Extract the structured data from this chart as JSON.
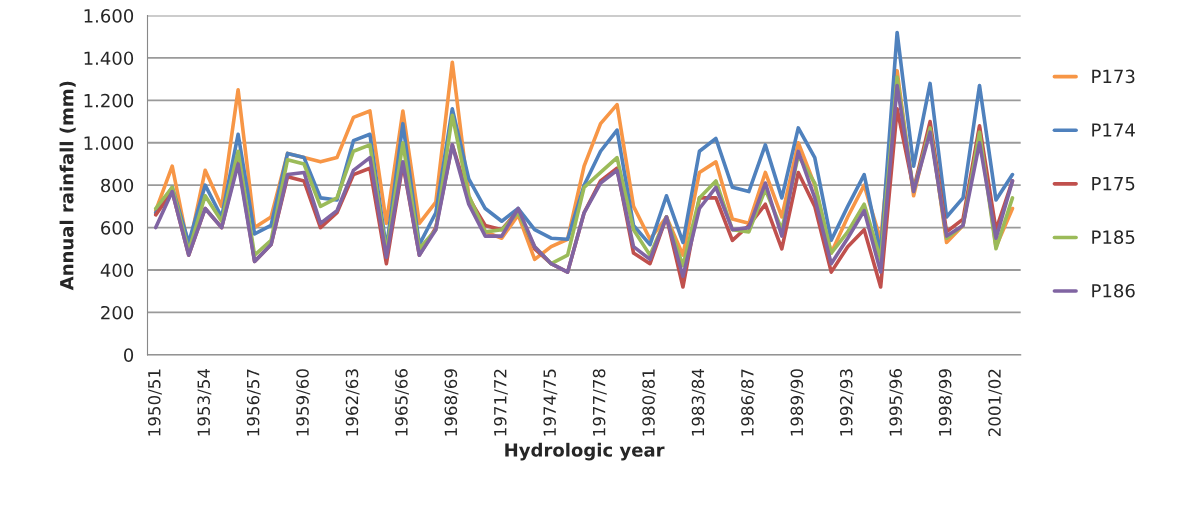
{
  "chart_data": {
    "type": "line",
    "xlabel": "Hydrologic year",
    "ylabel": "Annual rainfall (mm)",
    "categories": [
      "1950/51",
      null,
      null,
      "1953/54",
      null,
      null,
      "1956/57",
      null,
      null,
      "1959/60",
      null,
      null,
      "1962/63",
      null,
      null,
      "1965/66",
      null,
      null,
      "1968/69",
      null,
      null,
      "1971/72",
      null,
      null,
      "1974/75",
      null,
      null,
      "1977/78",
      null,
      null,
      "1980/81",
      null,
      null,
      "1983/84",
      null,
      null,
      "1986/87",
      null,
      null,
      "1989/90",
      null,
      null,
      "1992/93",
      null,
      null,
      "1995/96",
      null,
      null,
      "1998/99",
      null,
      null,
      "2001/02",
      null
    ],
    "series": [
      {
        "name": "P173",
        "color": "#f79646",
        "values": [
          680,
          890,
          500,
          870,
          700,
          1250,
          600,
          650,
          950,
          930,
          910,
          930,
          1120,
          1150,
          620,
          1150,
          620,
          720,
          1380,
          750,
          580,
          550,
          660,
          450,
          510,
          545,
          890,
          1090,
          1180,
          700,
          545,
          650,
          470,
          860,
          910,
          640,
          620,
          860,
          650,
          1000,
          800,
          480,
          650,
          800,
          540,
          1340,
          750,
          1080,
          530,
          610,
          1070,
          510,
          690
        ]
      },
      {
        "name": "P174",
        "color": "#4f81bd",
        "values": [
          670,
          790,
          530,
          800,
          650,
          1040,
          570,
          610,
          950,
          930,
          740,
          730,
          1010,
          1040,
          500,
          1090,
          520,
          670,
          1160,
          830,
          690,
          630,
          690,
          590,
          550,
          545,
          800,
          960,
          1060,
          610,
          520,
          750,
          530,
          960,
          1020,
          790,
          770,
          990,
          740,
          1070,
          930,
          540,
          700,
          850,
          480,
          1520,
          890,
          1280,
          650,
          740,
          1270,
          730,
          850
        ]
      },
      {
        "name": "P175",
        "color": "#c0504d",
        "values": [
          660,
          770,
          470,
          690,
          600,
          920,
          440,
          520,
          840,
          820,
          600,
          670,
          850,
          880,
          430,
          900,
          470,
          600,
          990,
          740,
          610,
          590,
          680,
          500,
          430,
          390,
          670,
          820,
          880,
          480,
          430,
          650,
          320,
          740,
          740,
          540,
          610,
          710,
          500,
          860,
          700,
          390,
          510,
          590,
          320,
          1160,
          780,
          1100,
          580,
          640,
          1080,
          590,
          820
        ]
      },
      {
        "name": "P185",
        "color": "#9bbb59",
        "values": [
          690,
          790,
          490,
          750,
          630,
          960,
          470,
          540,
          920,
          900,
          700,
          740,
          960,
          990,
          480,
          1000,
          500,
          590,
          1130,
          750,
          580,
          590,
          670,
          510,
          430,
          470,
          790,
          860,
          930,
          590,
          470,
          650,
          420,
          740,
          820,
          590,
          580,
          780,
          590,
          940,
          810,
          480,
          580,
          710,
          450,
          1310,
          770,
          1070,
          550,
          610,
          1050,
          500,
          740
        ]
      },
      {
        "name": "P186",
        "color": "#8064a2",
        "values": [
          600,
          770,
          470,
          690,
          600,
          900,
          440,
          520,
          850,
          860,
          620,
          680,
          870,
          930,
          460,
          910,
          470,
          590,
          990,
          710,
          560,
          560,
          690,
          510,
          430,
          390,
          670,
          810,
          870,
          510,
          450,
          650,
          370,
          690,
          790,
          590,
          600,
          810,
          560,
          960,
          740,
          430,
          550,
          680,
          390,
          1270,
          770,
          1050,
          560,
          610,
          1000,
          550,
          820
        ]
      }
    ],
    "ylim": [
      0,
      1600
    ],
    "yticks": [
      0,
      {
        "value": 200,
        "label": "200"
      },
      {
        "value": 400,
        "label": "400"
      },
      {
        "value": 600,
        "label": "600"
      },
      {
        "value": 800,
        "label": "800"
      },
      {
        "value": 1000,
        "label": "1.000"
      },
      {
        "value": 1200,
        "label": "1.200"
      },
      {
        "value": 1400,
        "label": "1.400"
      },
      {
        "value": 1600,
        "label": "1.600"
      }
    ],
    "grid": "y",
    "legend": "right",
    "marker": "none",
    "line_style": "solid"
  }
}
